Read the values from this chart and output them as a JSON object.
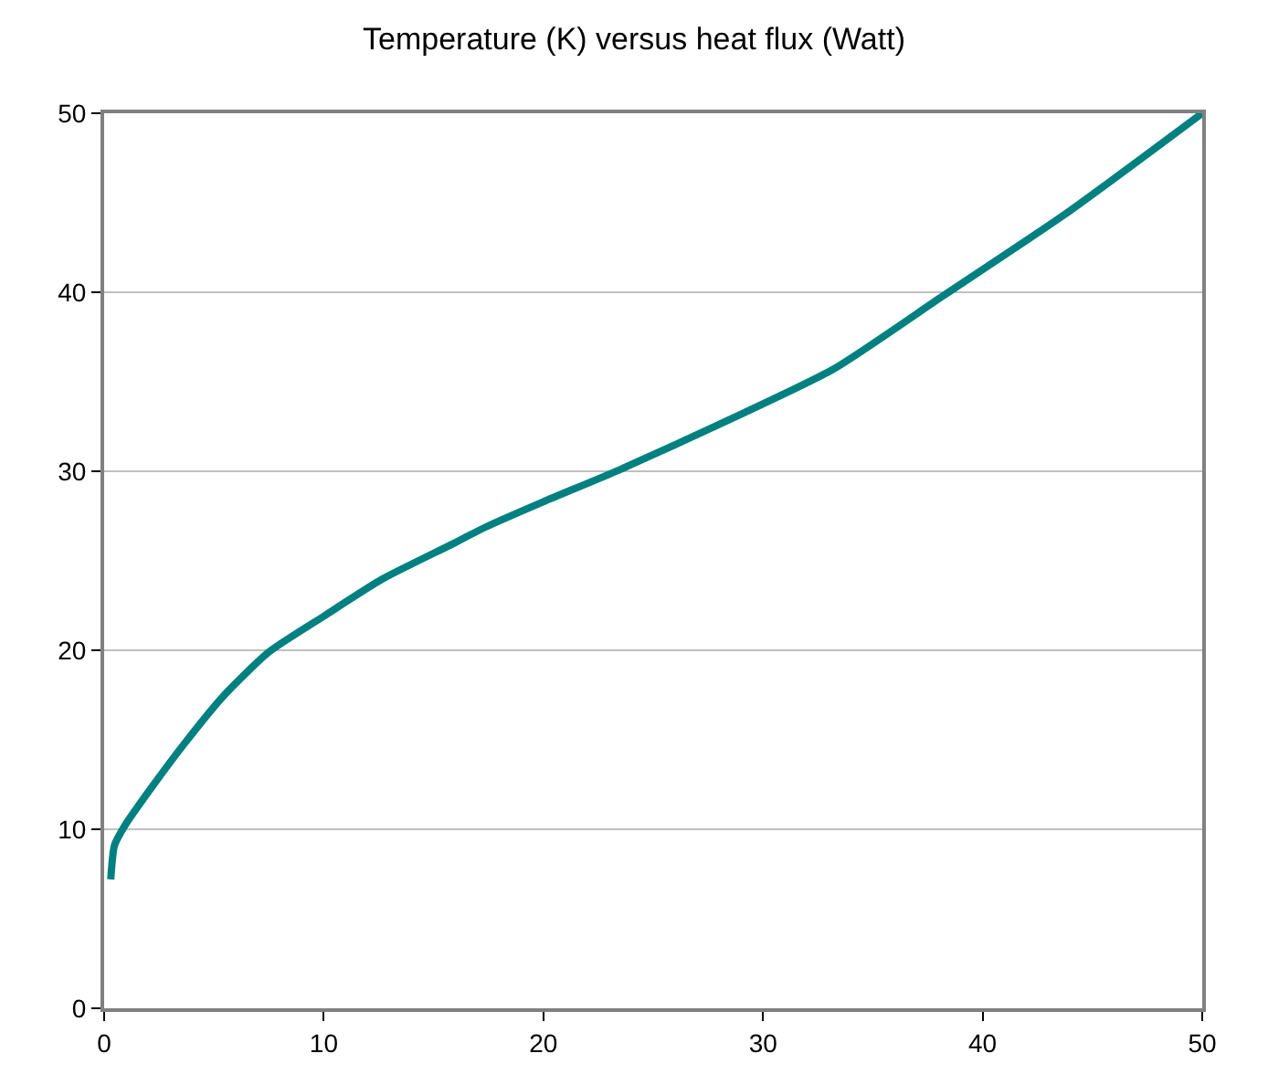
{
  "chart_data": {
    "type": "line",
    "title": "Temperature (K) versus heat flux (Watt)",
    "series": [
      {
        "color": "#008080",
        "x": [
          0.3,
          0.47,
          0.94,
          2.2,
          3.6,
          5.4,
          7.5,
          10,
          12.7,
          15.8,
          17.4,
          20,
          23.5,
          28.5,
          33.2,
          38.2,
          43.8,
          50
        ],
        "values": [
          7.2,
          9.1,
          10.2,
          12.4,
          14.7,
          17.4,
          19.9,
          21.9,
          24.0,
          25.9,
          26.9,
          28.3,
          30.1,
          32.9,
          35.7,
          39.8,
          44.4,
          50
        ]
      }
    ],
    "xlim": [
      0,
      50
    ],
    "xticks": [
      0,
      10,
      20,
      30,
      40,
      50
    ],
    "ylim": [
      0,
      50
    ],
    "yticks": [
      0,
      10,
      20,
      30,
      40,
      50
    ],
    "grid": "y",
    "legend": false,
    "marker": "none",
    "line_style": "solid"
  }
}
